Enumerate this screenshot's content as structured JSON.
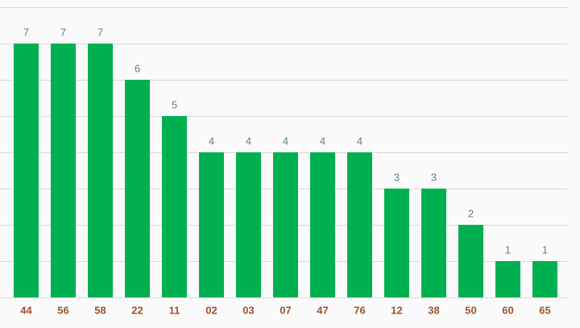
{
  "chart_data": {
    "type": "bar",
    "categories": [
      "44",
      "56",
      "58",
      "22",
      "11",
      "02",
      "03",
      "07",
      "47",
      "76",
      "12",
      "38",
      "50",
      "60",
      "65"
    ],
    "values": [
      7,
      7,
      7,
      6,
      5,
      4,
      4,
      4,
      4,
      4,
      3,
      3,
      2,
      1,
      1
    ],
    "color": "#00b050",
    "ylim": [
      0,
      8
    ],
    "yticks": [
      0,
      1,
      2,
      3,
      4,
      5,
      6,
      7,
      8
    ],
    "grid": true
  }
}
